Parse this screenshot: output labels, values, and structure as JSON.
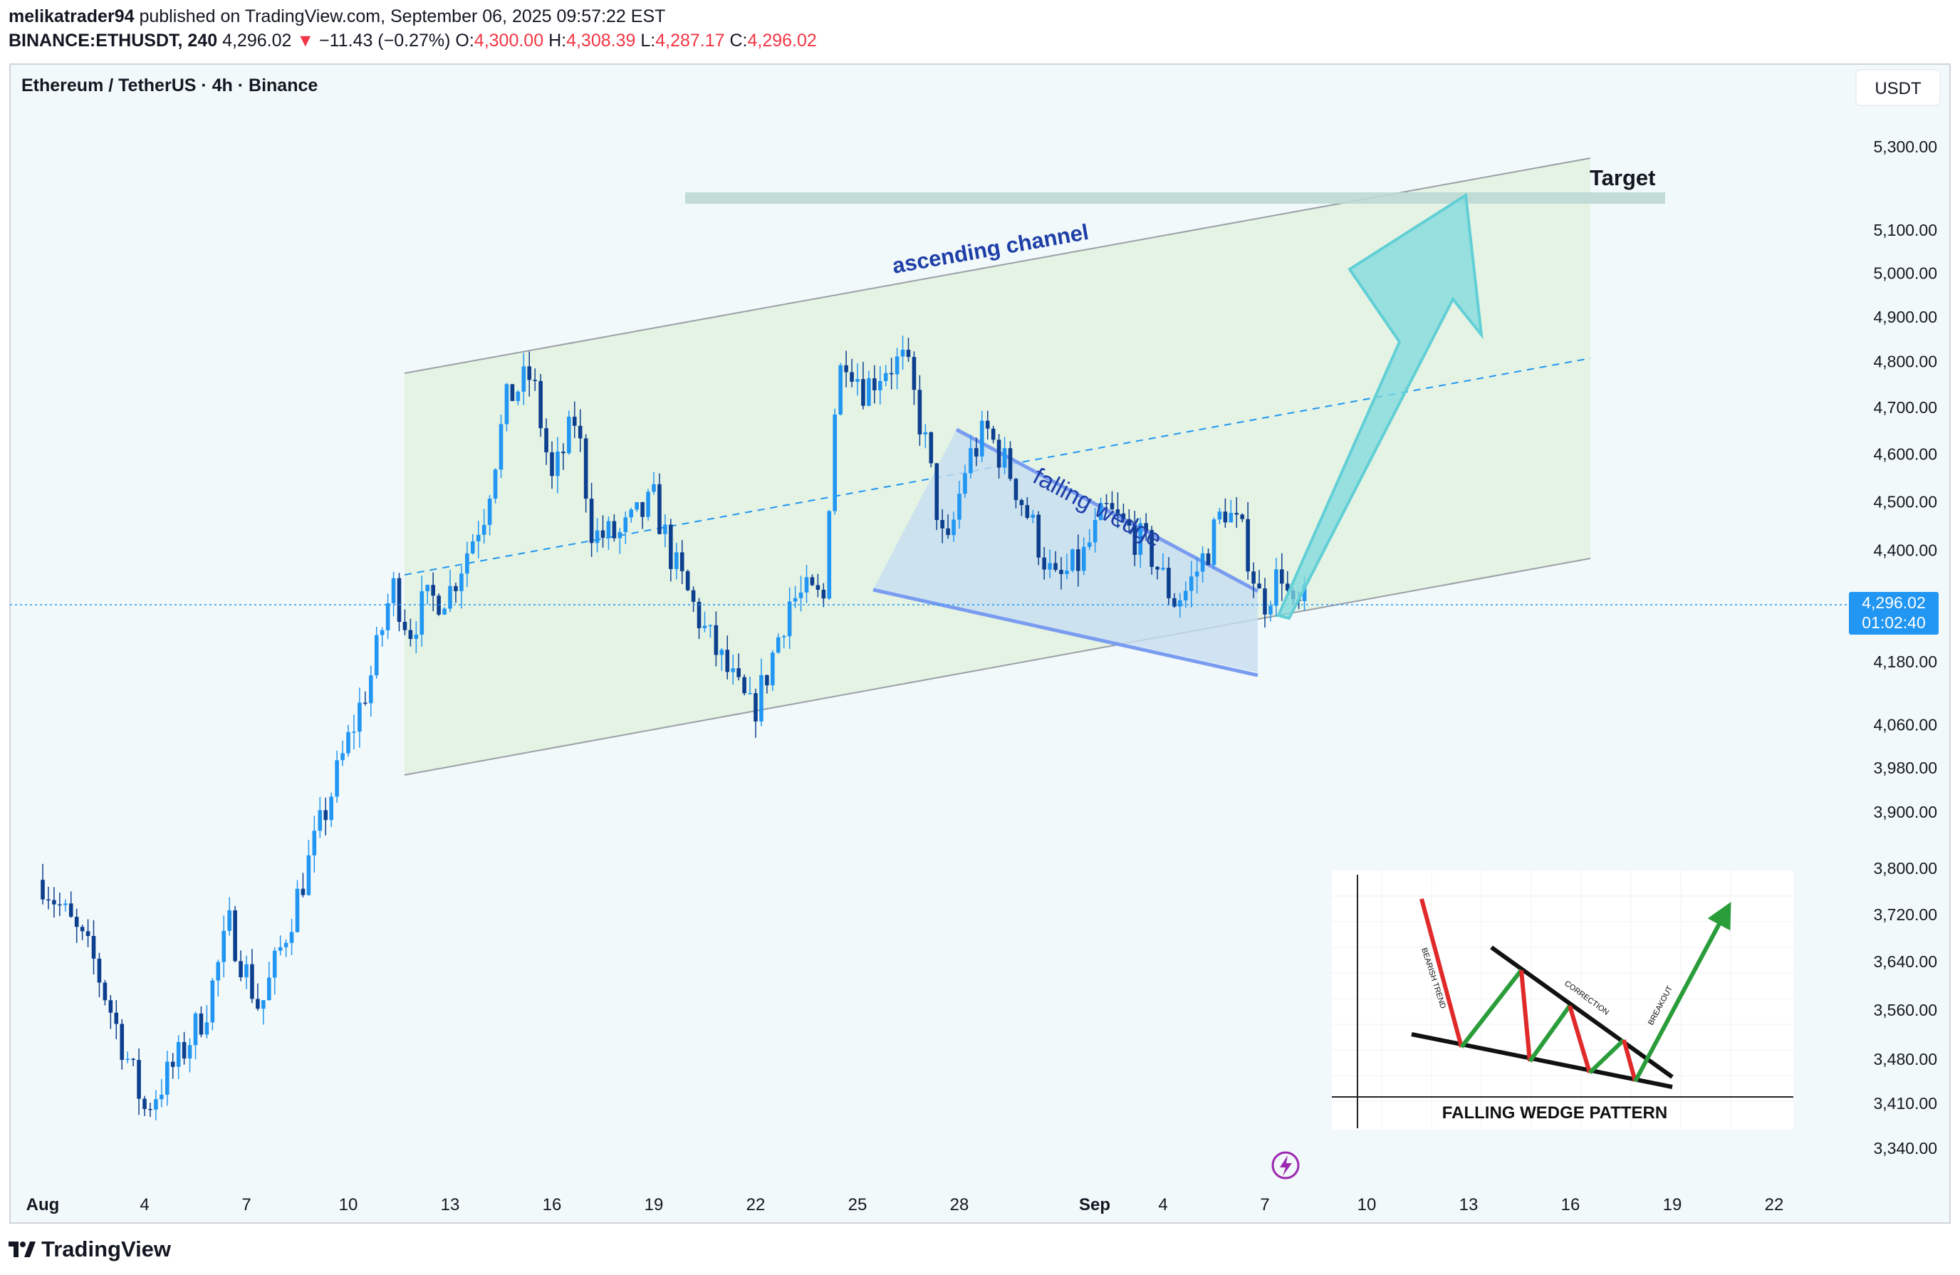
{
  "header": {
    "user": "melikatrader94",
    "published_text": "published on TradingView.com, September 06, 2025 09:57:22 EST",
    "symbol": "BINANCE:ETHUSDT, 240",
    "last": "4,296.02",
    "down_arrow": "▼",
    "change": "−11.43 (−0.27%)",
    "o_label": "O:",
    "o": "4,300.00",
    "h_label": "H:",
    "h": "4,308.39",
    "l_label": "L:",
    "l": "4,287.17",
    "c_label": "C:",
    "c": "4,296.02"
  },
  "pane": {
    "legend": "Ethereum / TetherUS · 4h · Binance",
    "currency_button": "USDT",
    "price_label": "4,296.02",
    "countdown": "01:02:40",
    "lightning_icon": "lightning-icon"
  },
  "footer": {
    "brand": "TradingView",
    "logo_icon": "tradingview-logo-icon"
  },
  "colors": {
    "up": "#2196f3",
    "down": "#0d3f8f",
    "channel_fill": "#e4f3e4",
    "wedge_fill": "#c6ddf0",
    "arrow": "#7fd9de",
    "target_line": "#bcd9d4",
    "bg": "#f2f9fa"
  },
  "chart_data": {
    "type": "candlestick",
    "symbol": "ETHUSDT",
    "timeframe": "4h",
    "y_ticks": [
      "5,300.00",
      "5,100.00",
      "5,000.00",
      "4,900.00",
      "4,800.00",
      "4,700.00",
      "4,600.00",
      "4,500.00",
      "4,400.00",
      "4,180.00",
      "4,060.00",
      "3,980.00",
      "3,900.00",
      "3,800.00",
      "3,720.00",
      "3,640.00",
      "3,560.00",
      "3,480.00",
      "3,410.00",
      "3,340.00"
    ],
    "x_ticks": [
      "Aug",
      "4",
      "7",
      "10",
      "13",
      "16",
      "19",
      "22",
      "25",
      "28",
      "Sep",
      "4",
      "7",
      "10",
      "13",
      "16",
      "19",
      "22"
    ],
    "y_scale": "log",
    "ylim": [
      3300,
      5420
    ],
    "close_path": [
      {
        "t": 0,
        "v": 3780
      },
      {
        "t": 1.5,
        "v": 3640
      },
      {
        "t": 3,
        "v": 3400
      },
      {
        "t": 4,
        "v": 3480
      },
      {
        "t": 4.8,
        "v": 3560
      },
      {
        "t": 5.5,
        "v": 3700
      },
      {
        "t": 6,
        "v": 3620
      },
      {
        "t": 6.4,
        "v": 3560
      },
      {
        "t": 7,
        "v": 3660
      },
      {
        "t": 8,
        "v": 3840
      },
      {
        "t": 9,
        "v": 4030
      },
      {
        "t": 9.7,
        "v": 4160
      },
      {
        "t": 10.3,
        "v": 4330
      },
      {
        "t": 10.8,
        "v": 4240
      },
      {
        "t": 11.2,
        "v": 4290
      },
      {
        "t": 12,
        "v": 4320
      },
      {
        "t": 13,
        "v": 4480
      },
      {
        "t": 13.7,
        "v": 4720
      },
      {
        "t": 14.4,
        "v": 4770
      },
      {
        "t": 15,
        "v": 4540
      },
      {
        "t": 15.7,
        "v": 4680
      },
      {
        "t": 16.2,
        "v": 4430
      },
      {
        "t": 17,
        "v": 4430
      },
      {
        "t": 18,
        "v": 4500
      },
      {
        "t": 18.6,
        "v": 4370
      },
      {
        "t": 19.5,
        "v": 4240
      },
      {
        "t": 20.5,
        "v": 4120
      },
      {
        "t": 20.9,
        "v": 4080
      },
      {
        "t": 21.3,
        "v": 4150
      },
      {
        "t": 22,
        "v": 4300
      },
      {
        "t": 22.5,
        "v": 4310
      },
      {
        "t": 23,
        "v": 4300
      },
      {
        "t": 23.3,
        "v": 4680
      },
      {
        "t": 23.6,
        "v": 4830
      },
      {
        "t": 24.2,
        "v": 4740
      },
      {
        "t": 24.8,
        "v": 4790
      },
      {
        "t": 25.4,
        "v": 4800
      },
      {
        "t": 26,
        "v": 4620
      },
      {
        "t": 26.6,
        "v": 4380
      },
      {
        "t": 27.2,
        "v": 4580
      },
      {
        "t": 27.8,
        "v": 4650
      },
      {
        "t": 28.5,
        "v": 4560
      },
      {
        "t": 29.2,
        "v": 4440
      },
      {
        "t": 29.8,
        "v": 4330
      },
      {
        "t": 30.6,
        "v": 4380
      },
      {
        "t": 31.3,
        "v": 4480
      },
      {
        "t": 32,
        "v": 4440
      },
      {
        "t": 32.6,
        "v": 4400
      },
      {
        "t": 33.3,
        "v": 4300
      },
      {
        "t": 33.7,
        "v": 4320
      },
      {
        "t": 34.3,
        "v": 4400
      },
      {
        "t": 34.8,
        "v": 4490
      },
      {
        "t": 35.4,
        "v": 4420
      },
      {
        "t": 35.9,
        "v": 4290
      },
      {
        "t": 36.5,
        "v": 4360
      },
      {
        "t": 36.8,
        "v": 4270
      },
      {
        "t": 37.2,
        "v": 4296
      }
    ],
    "annotations": {
      "channel_label": "ascending channel",
      "wedge_label": "falling wedge",
      "target_label": "Target",
      "target_price": 5200,
      "inset_title": "FALLING WEDGE PATTERN",
      "inset_labels": [
        "BEARISH TREND",
        "CORRECTION",
        "BREAKOUT"
      ]
    }
  }
}
